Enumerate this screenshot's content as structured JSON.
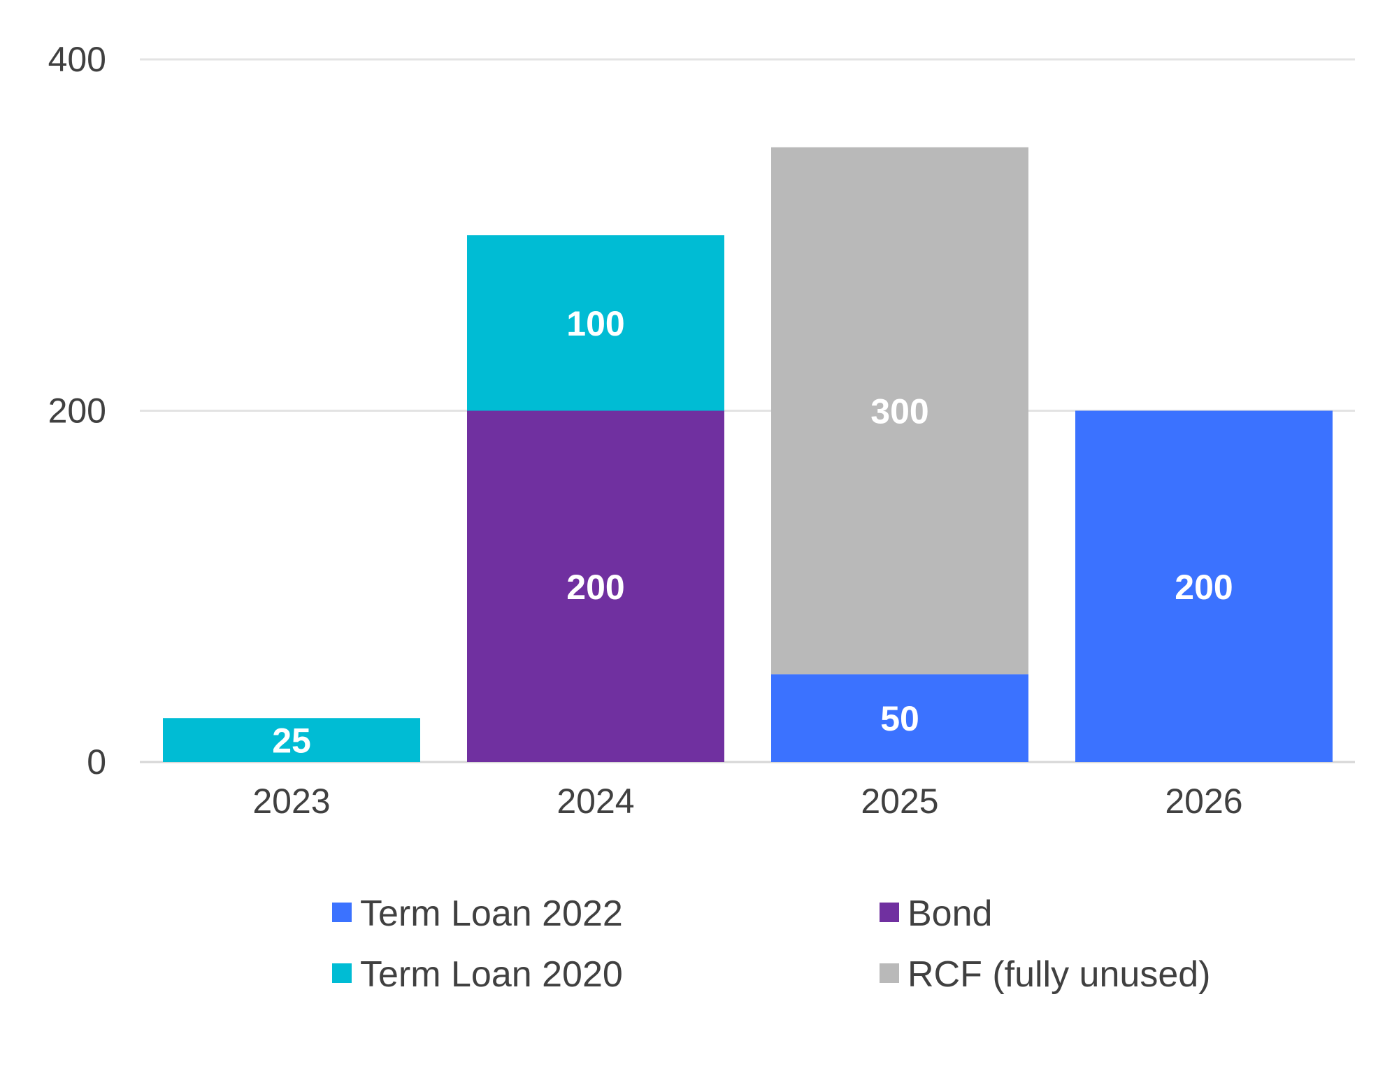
{
  "chart_data": {
    "type": "bar",
    "stacked": true,
    "categories": [
      "2023",
      "2024",
      "2025",
      "2026"
    ],
    "series": [
      {
        "name": "Term Loan 2022",
        "values": [
          0,
          0,
          50,
          200
        ],
        "color": "#3b72ff"
      },
      {
        "name": "Bond",
        "values": [
          0,
          200,
          0,
          0
        ],
        "color": "#7030a0"
      },
      {
        "name": "Term Loan 2020",
        "values": [
          25,
          100,
          0,
          0
        ],
        "color": "#00bcd4"
      },
      {
        "name": "RCF (fully unused)",
        "values": [
          0,
          0,
          300,
          0
        ],
        "color": "#b9b9b9"
      }
    ],
    "ylim": [
      0,
      400
    ],
    "yticks": [
      0,
      200,
      400
    ],
    "grid": true,
    "legend": "bottom",
    "title": "",
    "xlabel": "",
    "ylabel": ""
  }
}
